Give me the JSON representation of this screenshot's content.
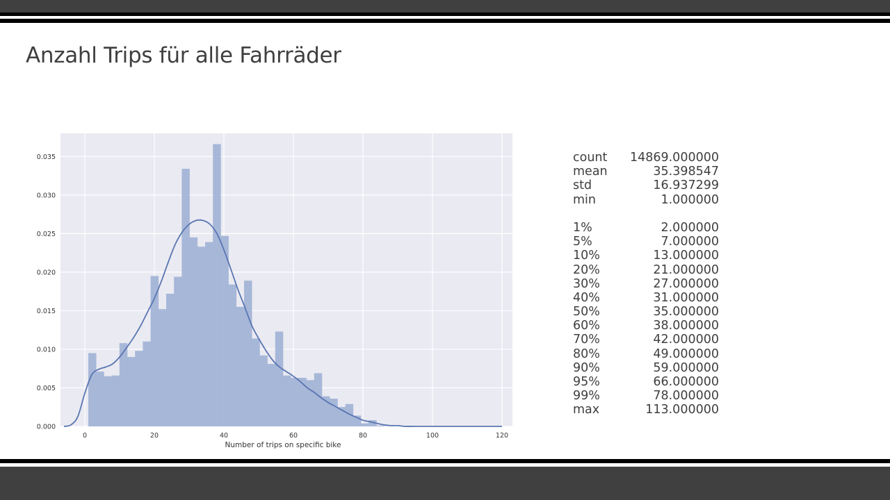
{
  "slide": {
    "title": "Anzahl Trips für alle Fahrräder"
  },
  "colors": {
    "plot_bg": "#eaeaf2",
    "grid": "#ffffff",
    "bar_fill": "#a3b4d6",
    "kde_line": "#5975b1",
    "frame_dark": "#404040",
    "title_text": "#3f3f3f"
  },
  "stats": {
    "summary": [
      {
        "key": "count",
        "value": "14869.000000"
      },
      {
        "key": "mean",
        "value": "35.398547"
      },
      {
        "key": "std",
        "value": "16.937299"
      },
      {
        "key": "min",
        "value": "1.000000"
      }
    ],
    "percentiles": [
      {
        "key": "1%",
        "value": "2.000000"
      },
      {
        "key": "5%",
        "value": "7.000000"
      },
      {
        "key": "10%",
        "value": "13.000000"
      },
      {
        "key": "20%",
        "value": "21.000000"
      },
      {
        "key": "30%",
        "value": "27.000000"
      },
      {
        "key": "40%",
        "value": "31.000000"
      },
      {
        "key": "50%",
        "value": "35.000000"
      },
      {
        "key": "60%",
        "value": "38.000000"
      },
      {
        "key": "70%",
        "value": "42.000000"
      },
      {
        "key": "80%",
        "value": "49.000000"
      },
      {
        "key": "90%",
        "value": "59.000000"
      },
      {
        "key": "95%",
        "value": "66.000000"
      },
      {
        "key": "99%",
        "value": "78.000000"
      },
      {
        "key": "max",
        "value": "113.000000"
      }
    ]
  },
  "chart_data": {
    "type": "bar",
    "xlabel": "Number of trips on specific bike",
    "ylabel": "",
    "xlim": [
      -7,
      123
    ],
    "ylim": [
      0,
      0.038
    ],
    "grid": true,
    "xticks": [
      0,
      20,
      40,
      60,
      80,
      100,
      120
    ],
    "xtick_labels": [
      "0",
      "20",
      "40",
      "60",
      "80",
      "100",
      "120"
    ],
    "yticks": [
      0,
      0.005,
      0.01,
      0.015,
      0.02,
      0.025,
      0.03,
      0.035
    ],
    "ytick_labels": [
      "0.000",
      "0.005",
      "0.010",
      "0.015",
      "0.020",
      "0.025",
      "0.030",
      "0.035"
    ],
    "bin_start": 1,
    "bin_width": 2.24,
    "histogram": [
      0.0095,
      0.0071,
      0.0065,
      0.0066,
      0.0108,
      0.009,
      0.0098,
      0.011,
      0.0195,
      0.0152,
      0.0172,
      0.0194,
      0.0334,
      0.0245,
      0.0233,
      0.0239,
      0.0366,
      0.0247,
      0.0184,
      0.0155,
      0.0189,
      0.0114,
      0.0092,
      0.0081,
      0.0123,
      0.0066,
      0.0063,
      0.0063,
      0.006,
      0.0069,
      0.0039,
      0.0036,
      0.0025,
      0.0029,
      0.0014,
      0.0004,
      0.0008,
      0.0001,
      0.0,
      0.0,
      0.0,
      0.0,
      0.0,
      0.0,
      0.0,
      0.0,
      0.0,
      0.0,
      0.0,
      0.0
    ],
    "kde": {
      "x": [
        -6,
        -4,
        -2,
        0,
        2,
        4,
        6,
        8,
        10,
        12,
        14,
        16,
        18,
        20,
        22,
        24,
        26,
        28,
        30,
        32,
        34,
        36,
        38,
        40,
        42,
        44,
        46,
        48,
        50,
        52,
        54,
        56,
        58,
        60,
        62,
        64,
        66,
        68,
        70,
        72,
        74,
        76,
        78,
        80,
        82,
        84,
        86,
        88,
        90,
        92,
        95,
        100,
        110,
        120
      ],
      "y": [
        0.0,
        0.0002,
        0.0013,
        0.0043,
        0.0067,
        0.0074,
        0.0077,
        0.0081,
        0.009,
        0.0102,
        0.0115,
        0.013,
        0.0148,
        0.0166,
        0.0188,
        0.0213,
        0.0236,
        0.0252,
        0.0262,
        0.0267,
        0.0267,
        0.0262,
        0.025,
        0.0229,
        0.0204,
        0.0178,
        0.0155,
        0.0131,
        0.0114,
        0.0099,
        0.0086,
        0.0077,
        0.0071,
        0.0065,
        0.0058,
        0.005,
        0.0044,
        0.0037,
        0.0031,
        0.0026,
        0.0021,
        0.0016,
        0.0012,
        0.0008,
        0.0006,
        0.0004,
        0.0002,
        0.0001,
        0.0001,
        0.0,
        0.0,
        0.0,
        0.0,
        0.0
      ]
    }
  }
}
